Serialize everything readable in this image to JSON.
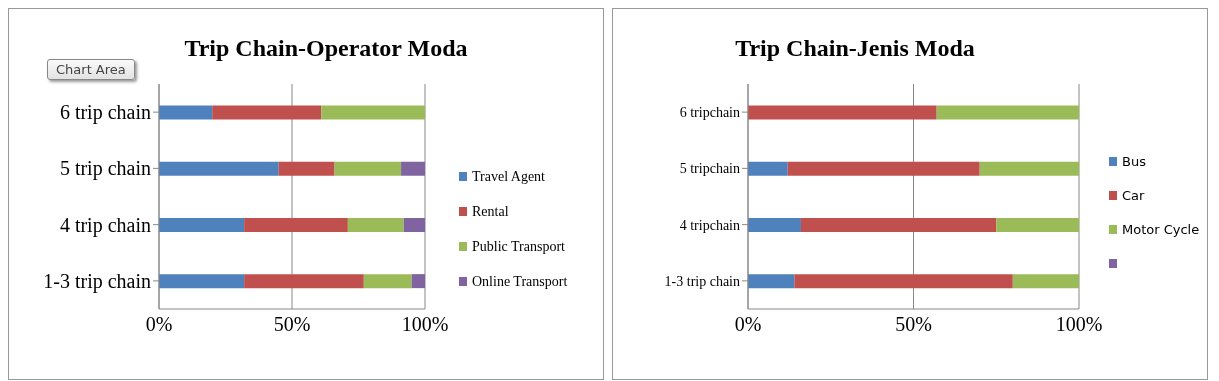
{
  "chart_data": [
    {
      "type": "bar",
      "orientation": "horizontal",
      "stacked": true,
      "title": "Trip Chain-Operator Moda",
      "categories": [
        "6 trip chain",
        "5 trip chain",
        "4 trip chain",
        "1-3 trip chain"
      ],
      "series": [
        {
          "name": "Travel Agent",
          "color": "#4f81bd",
          "values": [
            20,
            45,
            32,
            32
          ]
        },
        {
          "name": "Rental",
          "color": "#c0504d",
          "values": [
            41,
            21,
            39,
            45
          ]
        },
        {
          "name": "Public Transport",
          "color": "#9bbb59",
          "values": [
            39,
            25,
            21,
            18
          ]
        },
        {
          "name": "Online Transport",
          "color": "#8064a2",
          "values": [
            0,
            9,
            8,
            5
          ]
        }
      ],
      "xlim": [
        0,
        100
      ],
      "xticks": [
        {
          "value": 0,
          "label": "0%"
        },
        {
          "value": 50,
          "label": "50%"
        },
        {
          "value": 100,
          "label": "100%"
        }
      ],
      "grid": "x",
      "legend": "right",
      "annotations": [
        "Chart Area"
      ]
    },
    {
      "type": "bar",
      "orientation": "horizontal",
      "stacked": true,
      "title": "Trip Chain-Jenis Moda",
      "categories": [
        "6 tripchain",
        "5 tripchain",
        "4 tripchain",
        "1-3 trip chain"
      ],
      "series": [
        {
          "name": "Bus",
          "color": "#4f81bd",
          "values": [
            0,
            12,
            16,
            14
          ]
        },
        {
          "name": "Car",
          "color": "#c0504d",
          "values": [
            57,
            58,
            59,
            66
          ]
        },
        {
          "name": "Motor Cycle",
          "color": "#9bbb59",
          "values": [
            43,
            30,
            25,
            20
          ]
        },
        {
          "color": "#8064a2",
          "values": [
            null,
            null,
            null,
            null
          ]
        }
      ],
      "xlim": [
        0,
        100
      ],
      "xticks": [
        {
          "value": 0,
          "label": "0%"
        },
        {
          "value": 50,
          "label": "50%"
        },
        {
          "value": 100,
          "label": "100%"
        }
      ],
      "grid": "x",
      "legend": "right"
    }
  ]
}
